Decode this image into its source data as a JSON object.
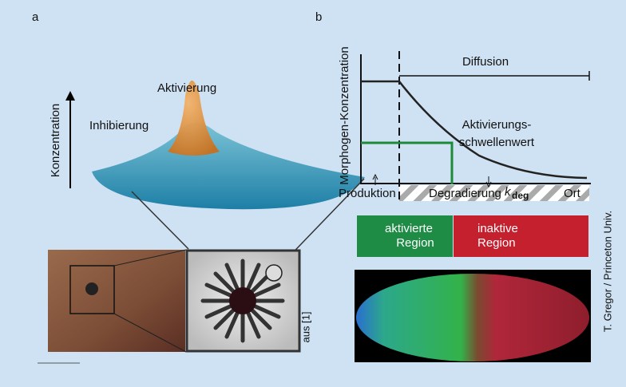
{
  "panel_a": {
    "label": "a",
    "peak_label": "Aktivierung",
    "base_label": "Inhibierung",
    "axis_label": "Konzentration",
    "credit": "aus [1]"
  },
  "panel_b": {
    "label": "b",
    "y_axis_label": "Morphogen-Konzentration",
    "diffusion_label": "Diffusion",
    "threshold_label": [
      "Aktivierungs-",
      "schwellenwert"
    ],
    "production_label": "Produktion",
    "degradation_label": "Degradierung",
    "degradation_symbol": "k",
    "degradation_subscript": "deg",
    "x_axis_label": "Ort",
    "active_region": [
      "aktivierte",
      "Region"
    ],
    "inactive_region": [
      "inaktive",
      "Region"
    ],
    "credit": "T. Gregor / Princeton Univ."
  }
}
